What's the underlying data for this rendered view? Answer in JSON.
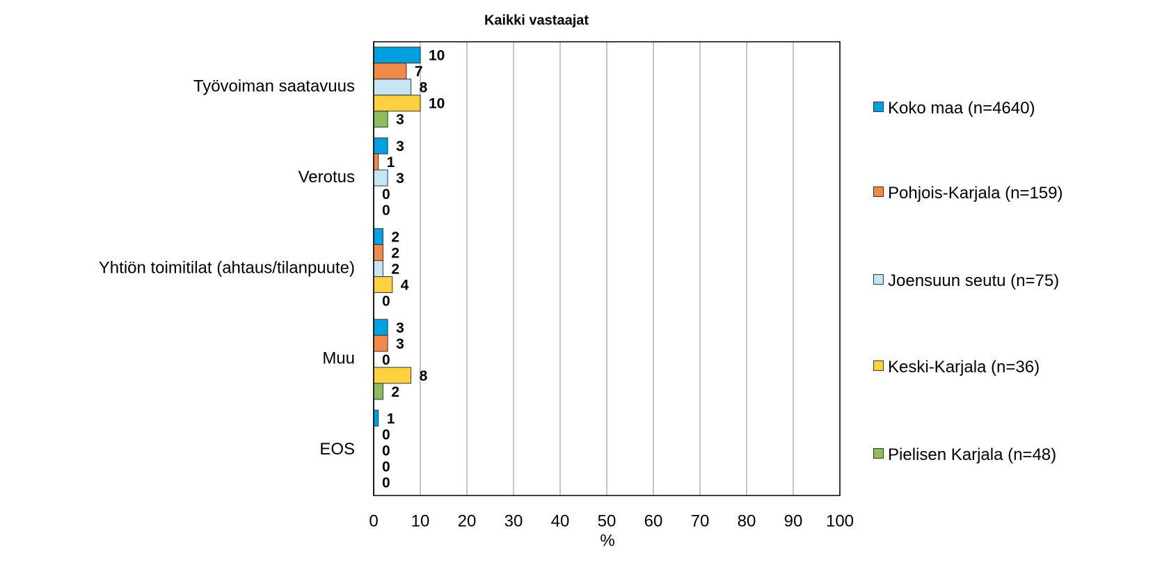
{
  "chart_data": {
    "type": "hbar",
    "title": "Kaikki vastaajat",
    "xlabel": "%",
    "categories": [
      "Työvoiman saatavuus",
      "Verotus",
      "Yhtiön toimitilat (ahtaus/tilanpuute)",
      "Muu",
      "EOS"
    ],
    "series": [
      {
        "name": "Koko maa (n=4640)",
        "color": "#009fe0",
        "values": [
          10,
          3,
          2,
          3,
          1
        ]
      },
      {
        "name": "Pohjois-Karjala (n=159)",
        "color": "#f08a4b",
        "values": [
          7,
          1,
          2,
          3,
          0
        ]
      },
      {
        "name": "Joensuun seutu (n=75)",
        "color": "#c5e5f5",
        "values": [
          8,
          3,
          2,
          0,
          0
        ]
      },
      {
        "name": "Keski-Karjala (n=36)",
        "color": "#ffd03f",
        "values": [
          10,
          0,
          4,
          8,
          0
        ]
      },
      {
        "name": "Pielisen Karjala (n=48)",
        "color": "#8dbd5e",
        "values": [
          3,
          0,
          0,
          2,
          0
        ]
      }
    ],
    "xlim": [
      0,
      100
    ],
    "xticks": [
      0,
      10,
      20,
      30,
      40,
      50,
      60,
      70,
      80,
      90,
      100
    ],
    "grid": true,
    "legend": "right"
  }
}
